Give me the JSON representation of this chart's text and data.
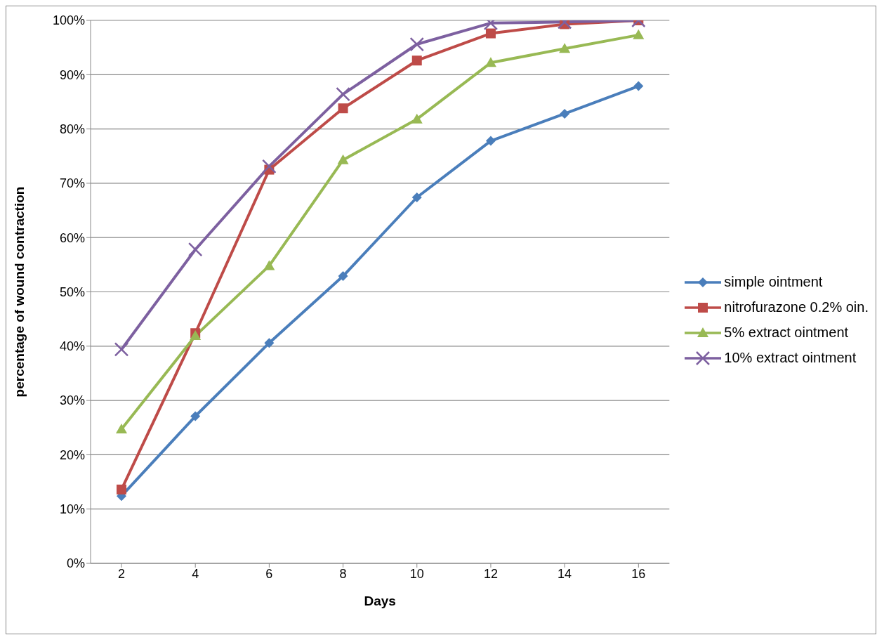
{
  "chart_data": {
    "type": "line",
    "xlabel": "Days",
    "ylabel": "percentage of wound contraction",
    "categories": [
      "2",
      "4",
      "6",
      "8",
      "10",
      "12",
      "14",
      "16"
    ],
    "series": [
      {
        "name": "simple ointment",
        "color": "#4a7ebb",
        "marker": "diamond",
        "values": [
          12.4,
          27.1,
          40.6,
          52.9,
          67.4,
          77.8,
          82.8,
          87.9
        ]
      },
      {
        "name": "nitrofurazone 0.2% oin.",
        "color": "#be4b48",
        "marker": "square",
        "values": [
          13.6,
          42.4,
          72.5,
          83.8,
          92.6,
          97.6,
          99.3,
          100
        ]
      },
      {
        "name": "5% extract ointment",
        "color": "#98b954",
        "marker": "triangle",
        "values": [
          24.7,
          41.9,
          54.8,
          74.3,
          81.8,
          92.2,
          94.8,
          97.3
        ]
      },
      {
        "name": "10% extract ointment",
        "color": "#7d60a0",
        "marker": "cross",
        "values": [
          39.4,
          57.8,
          73.1,
          86.4,
          95.6,
          99.5,
          99.7,
          100
        ]
      }
    ],
    "ylim": [
      0,
      100
    ],
    "yticks": [
      {
        "value": 0,
        "label": "0%"
      },
      {
        "value": 10,
        "label": "10%"
      },
      {
        "value": 20,
        "label": "20%"
      },
      {
        "value": 30,
        "label": "30%"
      },
      {
        "value": 40,
        "label": "40%"
      },
      {
        "value": 50,
        "label": "50%"
      },
      {
        "value": 60,
        "label": "60%"
      },
      {
        "value": 70,
        "label": "70%"
      },
      {
        "value": 80,
        "label": "80%"
      },
      {
        "value": 90,
        "label": "90%"
      },
      {
        "value": 100,
        "label": "100%"
      }
    ],
    "grid": "y",
    "legend": "right",
    "line_style": "solid"
  }
}
